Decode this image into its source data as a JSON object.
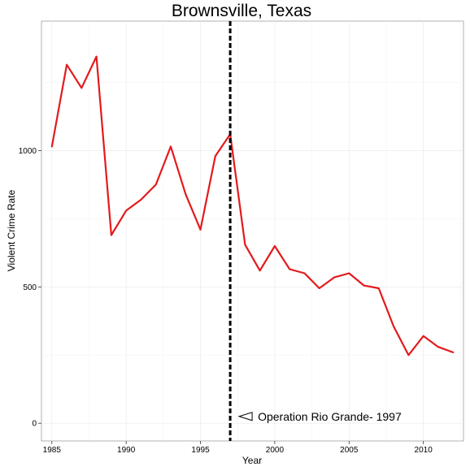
{
  "chart_data": {
    "type": "line",
    "title": "Brownsville, Texas",
    "xlabel": "Year",
    "ylabel": "Violent Crime Rate",
    "xlim": [
      1984.3,
      2012.7
    ],
    "ylim": [
      -65,
      1475
    ],
    "x_ticks": [
      1985,
      1990,
      1995,
      2000,
      2005,
      2010
    ],
    "y_ticks": [
      0,
      500,
      1000
    ],
    "grid": true,
    "line_color": "#e31a1c",
    "vline_color": "#000000",
    "series": [
      {
        "x": [
          1985,
          1986,
          1987,
          1988,
          1989,
          1990,
          1991,
          1992,
          1993,
          1994,
          1995,
          1996,
          1997,
          1998,
          1999,
          2000,
          2001,
          2002,
          2003,
          2004,
          2005,
          2006,
          2007,
          2008,
          2009,
          2010,
          2011,
          2012
        ],
        "values": [
          1015,
          1315,
          1230,
          1345,
          690,
          780,
          820,
          875,
          1015,
          840,
          710,
          980,
          1060,
          655,
          560,
          650,
          565,
          550,
          495,
          535,
          550,
          505,
          495,
          355,
          250,
          320,
          280,
          260
        ]
      }
    ],
    "annotations": [
      {
        "x": 1997,
        "label": "Operation Rio Grande- 1997"
      }
    ]
  }
}
